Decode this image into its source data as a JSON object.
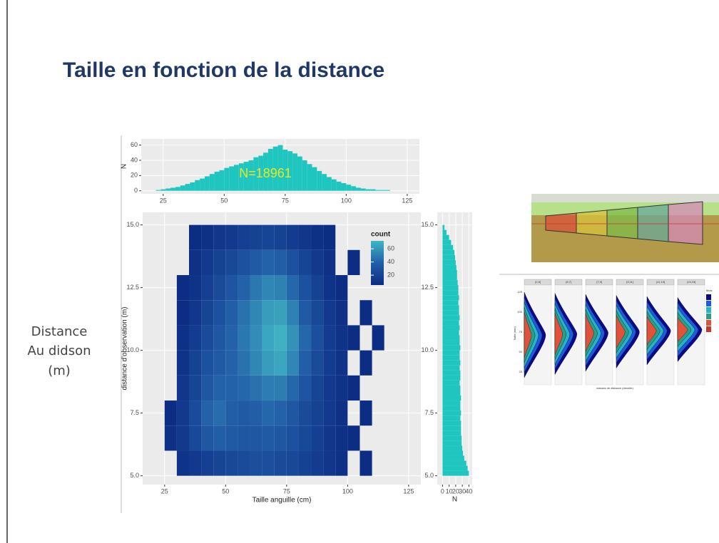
{
  "slide": {
    "title": "Taille en fonction de la distance",
    "side_label": [
      "Distance",
      "Au didson",
      "(m)"
    ]
  },
  "chart_data": [
    {
      "type": "histogram",
      "ylabel": "N",
      "annotation": "N=18961",
      "color": "#1fc6c0",
      "bins": [
        22,
        24,
        26,
        28,
        30,
        32,
        34,
        36,
        38,
        40,
        42,
        44,
        46,
        48,
        50,
        52,
        54,
        56,
        58,
        60,
        62,
        64,
        66,
        68,
        70,
        72,
        74,
        76,
        78,
        80,
        82,
        84,
        86,
        88,
        90,
        92,
        94,
        96,
        98,
        100,
        102,
        104,
        106,
        108,
        110,
        112,
        114,
        116,
        118
      ],
      "values": [
        1,
        2,
        3,
        4,
        5,
        7,
        9,
        11,
        14,
        16,
        19,
        22,
        25,
        27,
        30,
        32,
        34,
        36,
        38,
        40,
        44,
        46,
        50,
        55,
        58,
        60,
        54,
        52,
        49,
        45,
        40,
        35,
        31,
        26,
        22,
        18,
        15,
        12,
        10,
        8,
        6,
        4,
        3,
        2,
        2,
        1,
        1,
        1
      ],
      "xlim": [
        16,
        130
      ],
      "xticks": [
        25,
        50,
        75,
        100,
        125
      ],
      "ylim": [
        -4,
        68
      ],
      "yticks": [
        0,
        20,
        40,
        60
      ],
      "grid": true
    },
    {
      "type": "heatmap",
      "xlabel": "Taille anguille (cm)",
      "ylabel": "distance d'observation (m)",
      "legend_title": "count",
      "x_bins": [
        25,
        30,
        35,
        40,
        45,
        50,
        55,
        60,
        65,
        70,
        75,
        80,
        85,
        90,
        95,
        100,
        105,
        110,
        115
      ],
      "y_bins": [
        5,
        6,
        7,
        8,
        9,
        10,
        11,
        12,
        13,
        14,
        15
      ],
      "z": [
        [
          null,
          10,
          14,
          18,
          22,
          24,
          26,
          28,
          28,
          26,
          24,
          20,
          16,
          12,
          8,
          null,
          6,
          null
        ],
        [
          8,
          14,
          24,
          34,
          38,
          36,
          34,
          34,
          36,
          34,
          30,
          24,
          18,
          12,
          8,
          6,
          null,
          null
        ],
        [
          6,
          14,
          26,
          40,
          44,
          38,
          36,
          38,
          42,
          40,
          34,
          26,
          20,
          14,
          8,
          null,
          6,
          null
        ],
        [
          null,
          12,
          22,
          34,
          40,
          40,
          42,
          46,
          50,
          50,
          42,
          32,
          22,
          14,
          10,
          6,
          null,
          null
        ],
        [
          null,
          10,
          20,
          30,
          36,
          40,
          46,
          54,
          62,
          66,
          54,
          38,
          26,
          16,
          10,
          null,
          6,
          null
        ],
        [
          null,
          8,
          16,
          26,
          34,
          40,
          48,
          56,
          66,
          70,
          58,
          42,
          28,
          16,
          10,
          6,
          null,
          6
        ],
        [
          null,
          6,
          12,
          22,
          30,
          38,
          46,
          54,
          62,
          64,
          52,
          36,
          24,
          14,
          8,
          null,
          6,
          null
        ],
        [
          null,
          6,
          10,
          18,
          26,
          32,
          40,
          48,
          54,
          52,
          42,
          30,
          20,
          10,
          6,
          null,
          null,
          null
        ],
        [
          null,
          null,
          8,
          14,
          20,
          24,
          30,
          36,
          40,
          38,
          30,
          22,
          14,
          8,
          null,
          6,
          null,
          null
        ],
        [
          null,
          null,
          6,
          8,
          12,
          14,
          18,
          20,
          22,
          20,
          16,
          12,
          8,
          6,
          null,
          null,
          null,
          null
        ]
      ],
      "xlim": [
        16,
        130
      ],
      "xticks": [
        25,
        50,
        75,
        100,
        125
      ],
      "ylim": [
        4.65,
        15.5
      ],
      "yticks": [
        5.0,
        7.5,
        10.0,
        12.5,
        15.0
      ],
      "colorbar": {
        "lim": [
          5,
          72
        ],
        "ticks": [
          20,
          40,
          60
        ],
        "colors": [
          "#0c2c84",
          "#225ea8",
          "#41b6c4"
        ]
      },
      "grid": true
    },
    {
      "type": "histogram",
      "orientation": "horizontal",
      "xlabel": "N",
      "color": "#1fc6c0",
      "bins": [
        5.0,
        5.2,
        5.4,
        5.6,
        5.8,
        6.0,
        6.2,
        6.4,
        6.6,
        6.8,
        7.0,
        7.2,
        7.4,
        7.6,
        7.8,
        8.0,
        8.2,
        8.4,
        8.6,
        8.8,
        9.0,
        9.2,
        9.4,
        9.6,
        9.8,
        10.0,
        10.2,
        10.4,
        10.6,
        10.8,
        11.0,
        11.2,
        11.4,
        11.6,
        11.8,
        12.0,
        12.2,
        12.4,
        12.6,
        12.8,
        13.0,
        13.2,
        13.4,
        13.6,
        13.8,
        14.0,
        14.2,
        14.4,
        14.6,
        14.8,
        15.0
      ],
      "values": [
        40,
        38,
        36,
        33,
        31,
        30,
        29,
        29,
        28,
        28,
        28,
        27,
        28,
        27,
        27,
        28,
        27,
        27,
        26,
        27,
        27,
        26,
        27,
        26,
        26,
        27,
        26,
        26,
        25,
        26,
        25,
        26,
        25,
        25,
        24,
        25,
        24,
        24,
        23,
        22,
        22,
        21,
        20,
        19,
        18,
        16,
        13,
        10,
        6,
        3
      ],
      "xlim": [
        -8,
        45
      ],
      "xticks": [
        0,
        10,
        20,
        30,
        40
      ],
      "ylim": [
        4.65,
        15.5
      ],
      "yticks": [
        5.0,
        7.5,
        10.0,
        12.5,
        15.0
      ],
      "grid": true
    }
  ],
  "inset": {
    "facets": [
      "(2,5]",
      "(5,7]",
      "(7,9]",
      "(9,11]",
      "(11,13]",
      "(13,15]"
    ],
    "yticks": [
      "125",
      "100",
      "75",
      "50",
      "25"
    ],
    "ylabel": "Taille (mm)",
    "xlabel": "classes de distance (densite)",
    "legend_title": "Mois"
  }
}
